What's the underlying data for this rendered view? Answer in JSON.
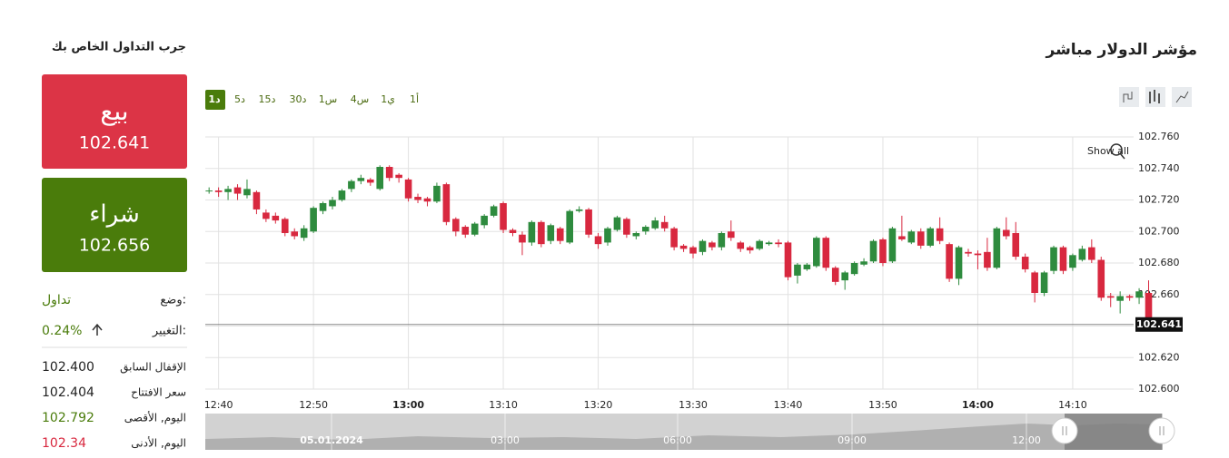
{
  "header": {
    "title": "مؤشر الدولار مباشر",
    "side_title": "جرب التداول الخاص بك"
  },
  "sell": {
    "label": "بيع",
    "price": "102.641"
  },
  "buy": {
    "label": "شراء",
    "price": "102.656"
  },
  "info": {
    "status_label": "وضع:",
    "status": "تداول",
    "change_label": "التغيير:",
    "change": "0.24%",
    "rows": [
      [
        "الإقفال السابق",
        "102.400"
      ],
      [
        "سعر الافتتاح",
        "102.404"
      ],
      [
        "اليوم, الأقصى",
        "102.792"
      ],
      [
        "اليوم, الأدنى",
        "102.34"
      ]
    ]
  },
  "timeframes": {
    "items": [
      "1د",
      "5د",
      "15د",
      "30د",
      "1س",
      "4س",
      "1ي",
      "1أ"
    ],
    "selected": 0
  },
  "show_all": "Show all",
  "navigator": {
    "date": "05.01.2024",
    "times": [
      "03:00",
      "06:00",
      "09:00",
      "12:00"
    ]
  },
  "chart_data": {
    "type": "candlestick",
    "up_color": "#2e8b3e",
    "down_color": "#d8283f",
    "grid": true,
    "xlim": [
      758.6,
      859.1
    ],
    "ylim": [
      102.6,
      102.76
    ],
    "xticks": [
      {
        "value": 760,
        "label": "12:40"
      },
      {
        "value": 770,
        "label": "12:50"
      },
      {
        "value": 780,
        "label": "13:00"
      },
      {
        "value": 790,
        "label": "13:10"
      },
      {
        "value": 800,
        "label": "13:20"
      },
      {
        "value": 810,
        "label": "13:30"
      },
      {
        "value": 820,
        "label": "13:40"
      },
      {
        "value": 830,
        "label": "13:50"
      },
      {
        "value": 840,
        "label": "14:00"
      },
      {
        "value": 850,
        "label": "14:10"
      }
    ],
    "yticks": [
      {
        "value": 102.6,
        "label": "102.600"
      },
      {
        "value": 102.62,
        "label": "102.620"
      },
      {
        "value": 102.64,
        "label": "102.640"
      },
      {
        "value": 102.66,
        "label": "102.660"
      },
      {
        "value": 102.68,
        "label": "102.680"
      },
      {
        "value": 102.7,
        "label": "102.700"
      },
      {
        "value": 102.72,
        "label": "102.720"
      },
      {
        "value": 102.74,
        "label": "102.740"
      },
      {
        "value": 102.76,
        "label": "102.760"
      }
    ],
    "price_label": 102.641,
    "x": [
      759,
      760,
      761,
      762,
      763,
      764,
      765,
      766,
      767,
      768,
      769,
      770,
      771,
      772,
      773,
      774,
      775,
      776,
      777,
      778,
      779,
      780,
      781,
      782,
      783,
      784,
      785,
      786,
      787,
      788,
      789,
      790,
      791,
      792,
      793,
      794,
      795,
      796,
      797,
      798,
      799,
      800,
      801,
      802,
      803,
      804,
      805,
      806,
      807,
      808,
      809,
      810,
      811,
      812,
      813,
      814,
      815,
      816,
      817,
      818,
      819,
      820,
      821,
      822,
      823,
      824,
      825,
      826,
      827,
      828,
      829,
      830,
      831,
      832,
      833,
      834,
      835,
      836,
      837,
      838,
      839,
      840,
      841,
      842,
      843,
      844,
      845,
      846,
      847,
      848,
      849,
      850,
      851,
      852,
      853,
      854,
      855,
      856,
      857,
      858
    ],
    "ohlc": [
      [
        102.726,
        102.728,
        102.724,
        102.726
      ],
      [
        102.726,
        102.728,
        102.722,
        102.725
      ],
      [
        102.725,
        102.729,
        102.72,
        102.727
      ],
      [
        102.728,
        102.73,
        102.72,
        102.724
      ],
      [
        102.723,
        102.733,
        102.721,
        102.727
      ],
      [
        102.725,
        102.726,
        102.711,
        102.714
      ],
      [
        102.712,
        102.714,
        102.706,
        102.708
      ],
      [
        102.71,
        102.712,
        102.705,
        102.707
      ],
      [
        102.708,
        102.709,
        102.697,
        102.699
      ],
      [
        102.7,
        102.702,
        102.695,
        102.697
      ],
      [
        102.696,
        102.704,
        102.694,
        102.702
      ],
      [
        102.7,
        102.716,
        102.699,
        102.715
      ],
      [
        102.713,
        102.719,
        102.711,
        102.718
      ],
      [
        102.716,
        102.722,
        102.714,
        102.72
      ],
      [
        102.72,
        102.727,
        102.719,
        102.726
      ],
      [
        102.727,
        102.733,
        102.725,
        102.732
      ],
      [
        102.732,
        102.736,
        102.73,
        102.734
      ],
      [
        102.733,
        102.734,
        102.729,
        102.731
      ],
      [
        102.727,
        102.742,
        102.726,
        102.741
      ],
      [
        102.741,
        102.742,
        102.732,
        102.734
      ],
      [
        102.736,
        102.737,
        102.731,
        102.734
      ],
      [
        102.733,
        102.734,
        102.719,
        102.721
      ],
      [
        102.722,
        102.724,
        102.718,
        102.72
      ],
      [
        102.721,
        102.722,
        102.716,
        102.719
      ],
      [
        102.719,
        102.731,
        102.718,
        102.729
      ],
      [
        102.73,
        102.731,
        102.704,
        102.706
      ],
      [
        102.708,
        102.709,
        102.697,
        102.7
      ],
      [
        102.703,
        102.704,
        102.696,
        102.698
      ],
      [
        102.698,
        102.706,
        102.697,
        102.705
      ],
      [
        102.704,
        102.711,
        102.702,
        102.71
      ],
      [
        102.71,
        102.717,
        102.709,
        102.716
      ],
      [
        102.718,
        102.719,
        102.699,
        102.701
      ],
      [
        102.701,
        102.702,
        102.697,
        102.699
      ],
      [
        102.698,
        102.7,
        102.685,
        102.693
      ],
      [
        102.693,
        102.707,
        102.691,
        102.706
      ],
      [
        102.706,
        102.707,
        102.69,
        102.692
      ],
      [
        102.694,
        102.705,
        102.692,
        102.704
      ],
      [
        102.702,
        102.703,
        102.692,
        102.694
      ],
      [
        102.693,
        102.714,
        102.692,
        102.713
      ],
      [
        102.713,
        102.716,
        102.712,
        102.714
      ],
      [
        102.714,
        102.715,
        102.696,
        102.698
      ],
      [
        102.697,
        102.699,
        102.689,
        102.692
      ],
      [
        102.693,
        102.703,
        102.691,
        102.702
      ],
      [
        102.701,
        102.71,
        102.7,
        102.709
      ],
      [
        102.708,
        102.709,
        102.696,
        102.698
      ],
      [
        102.697,
        102.7,
        102.695,
        102.699
      ],
      [
        102.7,
        102.704,
        102.698,
        102.703
      ],
      [
        102.702,
        102.709,
        102.701,
        102.707
      ],
      [
        102.706,
        102.71,
        102.7,
        102.702
      ],
      [
        102.702,
        102.703,
        102.688,
        102.69
      ],
      [
        102.691,
        102.692,
        102.687,
        102.689
      ],
      [
        102.69,
        102.691,
        102.683,
        102.686
      ],
      [
        102.687,
        102.695,
        102.685,
        102.694
      ],
      [
        102.693,
        102.694,
        102.688,
        102.69
      ],
      [
        102.69,
        102.7,
        102.688,
        102.699
      ],
      [
        102.7,
        102.707,
        102.694,
        102.696
      ],
      [
        102.693,
        102.694,
        102.687,
        102.689
      ],
      [
        102.69,
        102.691,
        102.686,
        102.688
      ],
      [
        102.689,
        102.695,
        102.688,
        102.694
      ],
      [
        102.692,
        102.694,
        102.691,
        102.693
      ],
      [
        102.693,
        102.695,
        102.69,
        102.692
      ],
      [
        102.693,
        102.694,
        102.669,
        102.671
      ],
      [
        102.672,
        102.68,
        102.667,
        102.679
      ],
      [
        102.676,
        102.68,
        102.675,
        102.679
      ],
      [
        102.678,
        102.697,
        102.677,
        102.696
      ],
      [
        102.696,
        102.697,
        102.675,
        102.677
      ],
      [
        102.677,
        102.678,
        102.666,
        102.668
      ],
      [
        102.669,
        102.675,
        102.663,
        102.674
      ],
      [
        102.673,
        102.681,
        102.672,
        102.68
      ],
      [
        102.679,
        102.683,
        102.678,
        102.681
      ],
      [
        102.681,
        102.695,
        102.68,
        102.694
      ],
      [
        102.695,
        102.696,
        102.678,
        102.68
      ],
      [
        102.681,
        102.703,
        102.68,
        102.702
      ],
      [
        102.697,
        102.71,
        102.694,
        102.695
      ],
      [
        102.693,
        102.701,
        102.692,
        102.7
      ],
      [
        102.7,
        102.702,
        102.689,
        102.691
      ],
      [
        102.691,
        102.703,
        102.69,
        102.702
      ],
      [
        102.702,
        102.709,
        102.692,
        102.694
      ],
      [
        102.692,
        102.693,
        102.668,
        102.67
      ],
      [
        102.67,
        102.691,
        102.666,
        102.69
      ],
      [
        102.687,
        102.689,
        102.684,
        102.686
      ],
      [
        102.686,
        102.688,
        102.676,
        102.685
      ],
      [
        102.687,
        102.696,
        102.675,
        102.677
      ],
      [
        102.677,
        102.703,
        102.676,
        102.702
      ],
      [
        102.701,
        102.709,
        102.695,
        102.697
      ],
      [
        102.699,
        102.706,
        102.682,
        102.684
      ],
      [
        102.684,
        102.686,
        102.674,
        102.676
      ],
      [
        102.674,
        102.675,
        102.655,
        102.661
      ],
      [
        102.661,
        102.675,
        102.659,
        102.674
      ],
      [
        102.675,
        102.691,
        102.673,
        102.69
      ],
      [
        102.69,
        102.691,
        102.673,
        102.675
      ],
      [
        102.677,
        102.686,
        102.675,
        102.685
      ],
      [
        102.682,
        102.691,
        102.681,
        102.689
      ],
      [
        102.69,
        102.695,
        102.68,
        102.682
      ],
      [
        102.682,
        102.684,
        102.656,
        102.658
      ],
      [
        102.659,
        102.661,
        102.652,
        102.658
      ],
      [
        102.656,
        102.662,
        102.648,
        102.659
      ],
      [
        102.659,
        102.66,
        102.656,
        102.658
      ],
      [
        102.658,
        102.664,
        102.654,
        102.662
      ],
      [
        102.661,
        102.669,
        102.639,
        102.641
      ]
    ]
  }
}
